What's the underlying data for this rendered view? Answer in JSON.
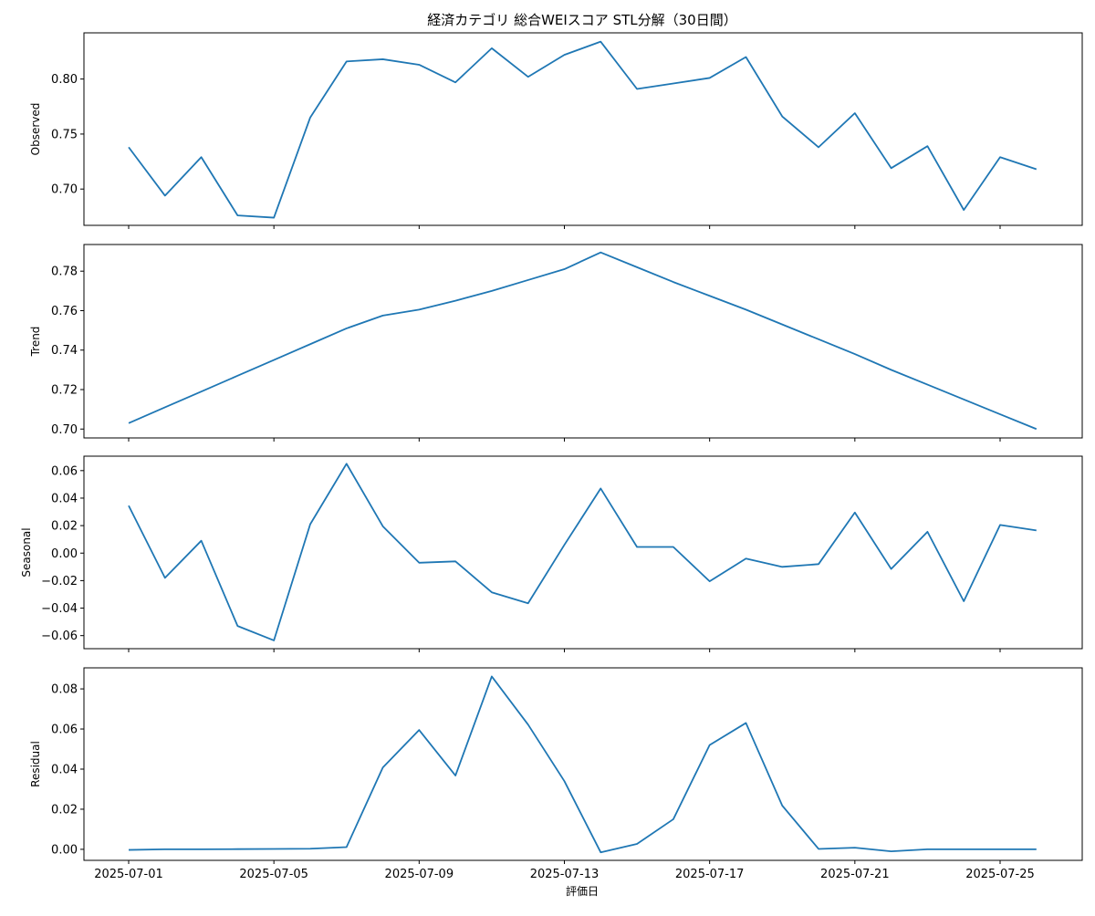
{
  "title": "経済カテゴリ 総合WEIスコア STL分解（30日間）",
  "xlabel": "評価日",
  "line_color": "#1f77b4",
  "chart_data": [
    {
      "type": "line",
      "ylabel": "Observed",
      "x": [
        "2025-07-01",
        "2025-07-02",
        "2025-07-03",
        "2025-07-04",
        "2025-07-05",
        "2025-07-06",
        "2025-07-07",
        "2025-07-08",
        "2025-07-09",
        "2025-07-10",
        "2025-07-11",
        "2025-07-12",
        "2025-07-13",
        "2025-07-14",
        "2025-07-15",
        "2025-07-16",
        "2025-07-17",
        "2025-07-18",
        "2025-07-19",
        "2025-07-20",
        "2025-07-21",
        "2025-07-22",
        "2025-07-23",
        "2025-07-24",
        "2025-07-25",
        "2025-07-26"
      ],
      "values": [
        0.738,
        0.694,
        0.729,
        0.676,
        0.674,
        0.765,
        0.816,
        0.818,
        0.813,
        0.797,
        0.828,
        0.802,
        0.822,
        0.834,
        0.791,
        0.796,
        0.801,
        0.82,
        0.766,
        0.738,
        0.769,
        0.719,
        0.739,
        0.681,
        0.729,
        0.718
      ],
      "ylim": [
        0.667,
        0.842
      ],
      "yticks": [
        "0.70",
        "0.75",
        "0.80"
      ],
      "ytick_values": [
        0.7,
        0.75,
        0.8
      ]
    },
    {
      "type": "line",
      "ylabel": "Trend",
      "x": [
        "2025-07-01",
        "2025-07-02",
        "2025-07-03",
        "2025-07-04",
        "2025-07-05",
        "2025-07-06",
        "2025-07-07",
        "2025-07-08",
        "2025-07-09",
        "2025-07-10",
        "2025-07-11",
        "2025-07-12",
        "2025-07-13",
        "2025-07-14",
        "2025-07-15",
        "2025-07-16",
        "2025-07-17",
        "2025-07-18",
        "2025-07-19",
        "2025-07-20",
        "2025-07-21",
        "2025-07-22",
        "2025-07-23",
        "2025-07-24",
        "2025-07-25",
        "2025-07-26"
      ],
      "values": [
        0.703,
        0.711,
        0.719,
        0.727,
        0.735,
        0.743,
        0.751,
        0.7575,
        0.7605,
        0.765,
        0.77,
        0.7755,
        0.781,
        0.7895,
        0.782,
        0.7745,
        0.7675,
        0.7605,
        0.753,
        0.7455,
        0.738,
        0.73,
        0.7225,
        0.715,
        0.7075,
        0.7
      ],
      "ylim": [
        0.6955,
        0.7935
      ],
      "yticks": [
        "0.70",
        "0.72",
        "0.74",
        "0.76",
        "0.78"
      ],
      "ytick_values": [
        0.7,
        0.72,
        0.74,
        0.76,
        0.78
      ]
    },
    {
      "type": "line",
      "ylabel": "Seasonal",
      "x": [
        "2025-07-01",
        "2025-07-02",
        "2025-07-03",
        "2025-07-04",
        "2025-07-05",
        "2025-07-06",
        "2025-07-07",
        "2025-07-08",
        "2025-07-09",
        "2025-07-10",
        "2025-07-11",
        "2025-07-12",
        "2025-07-13",
        "2025-07-14",
        "2025-07-15",
        "2025-07-16",
        "2025-07-17",
        "2025-07-18",
        "2025-07-19",
        "2025-07-20",
        "2025-07-21",
        "2025-07-22",
        "2025-07-23",
        "2025-07-24",
        "2025-07-25",
        "2025-07-26"
      ],
      "values": [
        0.0345,
        -0.018,
        0.009,
        -0.053,
        -0.0635,
        0.021,
        0.065,
        0.0195,
        -0.007,
        -0.006,
        -0.0285,
        -0.0365,
        0.006,
        0.047,
        0.0045,
        0.0045,
        -0.0205,
        -0.004,
        -0.01,
        -0.008,
        0.0295,
        -0.0115,
        0.0155,
        -0.035,
        0.0205,
        0.0165
      ],
      "ylim": [
        -0.0695,
        0.0705
      ],
      "yticks": [
        "−0.06",
        "−0.04",
        "−0.02",
        "0.00",
        "0.02",
        "0.04",
        "0.06"
      ],
      "ytick_values": [
        -0.06,
        -0.04,
        -0.02,
        0.0,
        0.02,
        0.04,
        0.06
      ]
    },
    {
      "type": "line",
      "ylabel": "Residual",
      "x": [
        "2025-07-01",
        "2025-07-02",
        "2025-07-03",
        "2025-07-04",
        "2025-07-05",
        "2025-07-06",
        "2025-07-07",
        "2025-07-08",
        "2025-07-09",
        "2025-07-10",
        "2025-07-11",
        "2025-07-12",
        "2025-07-13",
        "2025-07-14",
        "2025-07-15",
        "2025-07-16",
        "2025-07-17",
        "2025-07-18",
        "2025-07-19",
        "2025-07-20",
        "2025-07-21",
        "2025-07-22",
        "2025-07-23",
        "2025-07-24",
        "2025-07-25",
        "2025-07-26"
      ],
      "values": [
        -0.0003,
        0.0,
        0.0,
        0.0001,
        0.0002,
        0.0003,
        0.0011,
        0.0408,
        0.0595,
        0.0368,
        0.0862,
        0.0622,
        0.034,
        -0.0015,
        0.0027,
        0.015,
        0.052,
        0.063,
        0.0218,
        0.0002,
        0.0008,
        -0.001,
        0.0,
        0.0,
        0.0,
        0.0
      ],
      "ylim": [
        -0.0055,
        0.0905
      ],
      "yticks": [
        "0.00",
        "0.02",
        "0.04",
        "0.06",
        "0.08"
      ],
      "ytick_values": [
        0.0,
        0.02,
        0.04,
        0.06,
        0.08
      ]
    }
  ],
  "xticks": [
    "2025-07-01",
    "2025-07-05",
    "2025-07-09",
    "2025-07-13",
    "2025-07-17",
    "2025-07-21",
    "2025-07-25"
  ]
}
